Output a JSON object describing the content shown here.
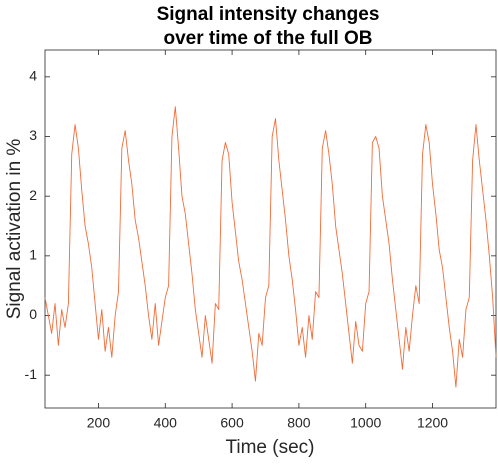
{
  "chart_data": {
    "type": "line",
    "title": [
      "Signal intensity changes",
      "over time of the full OB"
    ],
    "xlabel": "Time (sec)",
    "ylabel": "Signal activation in %",
    "x": [
      40,
      50,
      60,
      70,
      80,
      90,
      100,
      110,
      120,
      130,
      140,
      150,
      160,
      170,
      180,
      190,
      200,
      210,
      220,
      230,
      240,
      250,
      260,
      270,
      280,
      290,
      300,
      310,
      320,
      330,
      340,
      350,
      360,
      370,
      380,
      390,
      400,
      410,
      420,
      430,
      440,
      450,
      460,
      470,
      480,
      490,
      500,
      510,
      520,
      530,
      540,
      550,
      560,
      570,
      580,
      590,
      600,
      610,
      620,
      630,
      640,
      650,
      660,
      670,
      680,
      690,
      700,
      710,
      720,
      730,
      740,
      750,
      760,
      770,
      780,
      790,
      800,
      810,
      820,
      830,
      840,
      850,
      860,
      870,
      880,
      890,
      900,
      910,
      920,
      930,
      940,
      950,
      960,
      970,
      980,
      990,
      1000,
      1010,
      1020,
      1030,
      1040,
      1050,
      1060,
      1070,
      1080,
      1090,
      1100,
      1110,
      1120,
      1130,
      1140,
      1150,
      1160,
      1170,
      1180,
      1190,
      1200,
      1210,
      1220,
      1230,
      1240,
      1250,
      1260,
      1270,
      1280,
      1290,
      1300,
      1310,
      1320,
      1330,
      1340,
      1350,
      1360,
      1370,
      1380,
      1390
    ],
    "series": [
      {
        "name": "full OB",
        "color": "#f26b38",
        "values": [
          0.3,
          0.0,
          -0.3,
          0.2,
          -0.5,
          0.1,
          -0.2,
          0.2,
          2.7,
          3.2,
          2.8,
          2.1,
          1.5,
          1.2,
          0.8,
          0.2,
          -0.4,
          0.1,
          -0.6,
          -0.2,
          -0.7,
          0.0,
          0.4,
          2.8,
          3.1,
          2.6,
          2.2,
          1.6,
          1.3,
          0.9,
          0.5,
          0.0,
          -0.4,
          0.2,
          -0.5,
          -0.1,
          0.3,
          0.5,
          3.0,
          3.5,
          2.8,
          2.0,
          1.7,
          1.2,
          0.7,
          0.1,
          -0.3,
          -0.7,
          0.0,
          -0.4,
          -0.8,
          0.2,
          0.1,
          2.6,
          2.9,
          2.7,
          1.9,
          1.4,
          0.9,
          0.6,
          0.2,
          -0.2,
          -0.6,
          -1.1,
          -0.3,
          -0.5,
          0.3,
          0.5,
          3.0,
          3.3,
          2.6,
          2.1,
          1.6,
          1.0,
          0.6,
          0.1,
          -0.5,
          -0.2,
          -0.7,
          0.0,
          -0.4,
          0.4,
          0.3,
          2.8,
          3.1,
          2.7,
          2.2,
          1.5,
          1.1,
          0.7,
          0.2,
          -0.3,
          -0.8,
          -0.1,
          -0.5,
          -0.6,
          0.2,
          0.4,
          2.9,
          3.0,
          2.8,
          2.0,
          1.6,
          1.2,
          0.6,
          0.1,
          -0.4,
          -0.9,
          -0.2,
          -0.6,
          0.0,
          0.5,
          0.2,
          2.7,
          3.2,
          2.9,
          2.2,
          1.7,
          1.1,
          0.8,
          0.3,
          -0.2,
          -0.6,
          -1.2,
          -0.4,
          -0.7,
          0.1,
          0.3,
          2.6,
          3.2,
          2.6,
          2.1,
          1.6,
          1.0,
          0.3,
          -0.7
        ]
      }
    ],
    "xlim": [
      40,
      1390
    ],
    "ylim": [
      -1.55,
      4.45
    ],
    "xticks": [
      200,
      400,
      600,
      800,
      1000,
      1200
    ],
    "yticks": [
      -1,
      0,
      1,
      2,
      3,
      4
    ]
  }
}
